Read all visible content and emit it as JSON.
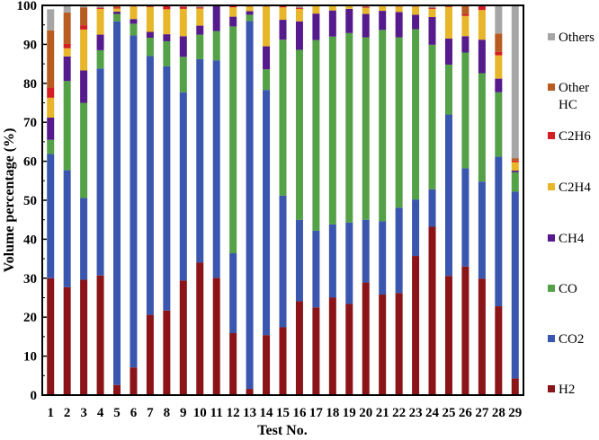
{
  "chart_data": {
    "type": "bar",
    "stacked": true,
    "title": "",
    "xlabel": "Test No.",
    "ylabel": "Volume percentage (%)",
    "ylim": [
      0,
      100
    ],
    "yticks": [
      0,
      10,
      20,
      30,
      40,
      50,
      60,
      70,
      80,
      90,
      100
    ],
    "grid": false,
    "legend_position": "right",
    "categories": [
      "1",
      "2",
      "3",
      "4",
      "5",
      "6",
      "7",
      "8",
      "9",
      "10",
      "11",
      "12",
      "13",
      "14",
      "15",
      "16",
      "17",
      "18",
      "19",
      "20",
      "21",
      "22",
      "23",
      "24",
      "25",
      "26",
      "27",
      "28",
      "29"
    ],
    "series": [
      {
        "name": "H2",
        "color": "#8B1418",
        "values": [
          30.0,
          27.7,
          29.6,
          30.7,
          2.6,
          7.1,
          20.6,
          21.7,
          29.4,
          34.0,
          30.1,
          15.9,
          1.6,
          15.4,
          17.4,
          24.1,
          22.5,
          25.0,
          23.4,
          28.9,
          25.8,
          26.2,
          35.7,
          43.2,
          30.6,
          33.0,
          29.9,
          22.8,
          4.3
        ]
      },
      {
        "name": "CO2",
        "color": "#3A56AE",
        "values": [
          31.9,
          30.0,
          21.0,
          53.1,
          93.3,
          85.2,
          66.4,
          62.7,
          48.3,
          52.2,
          55.8,
          20.5,
          94.4,
          62.9,
          33.8,
          20.9,
          19.7,
          18.8,
          20.9,
          16.1,
          18.8,
          21.9,
          14.5,
          9.6,
          41.4,
          25.2,
          24.9,
          38.4,
          47.9
        ]
      },
      {
        "name": "CO",
        "color": "#54A148",
        "values": [
          3.6,
          22.9,
          24.4,
          4.7,
          1.9,
          3.0,
          4.7,
          6.4,
          9.1,
          6.3,
          7.5,
          58.2,
          1.6,
          5.3,
          40.0,
          43.6,
          48.9,
          48.2,
          48.6,
          46.8,
          49.1,
          43.7,
          43.7,
          37.1,
          12.8,
          29.7,
          27.8,
          16.5,
          5.0
        ]
      },
      {
        "name": "CH4",
        "color": "#551A8B",
        "values": [
          5.7,
          6.3,
          8.3,
          4.0,
          0.6,
          1.2,
          1.5,
          1.8,
          5.3,
          2.3,
          6.6,
          2.5,
          0.9,
          5.9,
          5.1,
          7.3,
          6.8,
          6.7,
          6.2,
          6.0,
          4.9,
          6.5,
          3.7,
          7.1,
          6.7,
          4.2,
          8.6,
          3.5,
          0.4
        ]
      },
      {
        "name": "C2H4",
        "color": "#E8B62A",
        "values": [
          5.1,
          2.1,
          10.5,
          6.6,
          0.8,
          3.2,
          6.4,
          6.4,
          7.0,
          4.4,
          0,
          2.4,
          1.2,
          10.2,
          3.2,
          3.2,
          1.9,
          1.1,
          0.9,
          1.6,
          1.2,
          1.4,
          2.1,
          2.1,
          8.1,
          5.2,
          7.6,
          6.0,
          2.2
        ]
      },
      {
        "name": "C2H6",
        "color": "#D41E24",
        "values": [
          2.6,
          1.1,
          1.1,
          0.3,
          0.3,
          0.3,
          0.4,
          1.0,
          0.6,
          0.3,
          0,
          0.3,
          0.3,
          0.3,
          0.3,
          0.3,
          0.2,
          0.2,
          0.2,
          0.3,
          0.3,
          0.3,
          0.3,
          0.3,
          0.2,
          0.4,
          1.2,
          0.9,
          0.4
        ]
      },
      {
        "name": "Other HC",
        "color": "#B85C21",
        "values": [
          14.7,
          8.1,
          4.6,
          0,
          0.5,
          0,
          0,
          0,
          0,
          0,
          0,
          0,
          0,
          0,
          0,
          0,
          0,
          0,
          0,
          0,
          0,
          0,
          0,
          0,
          0,
          2.3,
          0,
          4.7,
          0.6
        ]
      },
      {
        "name": "Others",
        "color": "#A6A6A6",
        "values": [
          5.4,
          1.8,
          0.5,
          0.6,
          0,
          0,
          0,
          0,
          0,
          0.5,
          0,
          0,
          0,
          0,
          0.2,
          0.6,
          0,
          0,
          0,
          0.3,
          0,
          0,
          0,
          0.6,
          0.2,
          0,
          0,
          7.2,
          39.2
        ]
      }
    ]
  },
  "legend": {
    "items": [
      {
        "label": "Others",
        "color": "#A6A6A6"
      },
      {
        "label": "Other HC",
        "color": "#B85C21"
      },
      {
        "label": "C2H6",
        "color": "#D41E24"
      },
      {
        "label": "C2H4",
        "color": "#E8B62A"
      },
      {
        "label": "CH4",
        "color": "#551A8B"
      },
      {
        "label": "CO",
        "color": "#54A148"
      },
      {
        "label": "CO2",
        "color": "#3A56AE"
      },
      {
        "label": "H2",
        "color": "#8B1418"
      }
    ]
  }
}
